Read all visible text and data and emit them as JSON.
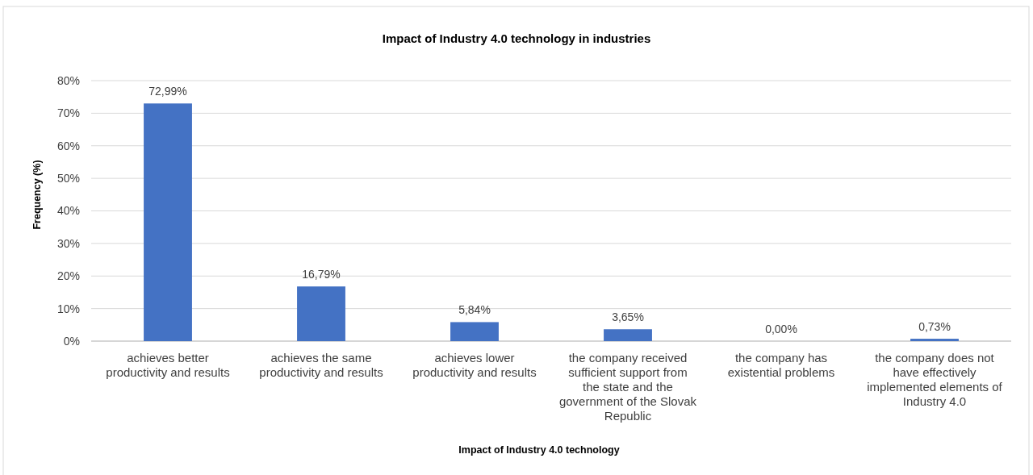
{
  "chart_data": {
    "type": "bar",
    "title": "Impact of Industry 4.0 technology in industries",
    "xlabel": "Impact of Industry 4.0 technology",
    "ylabel": "Frequency (%)",
    "categories": [
      "achieves better productivity and results",
      "achieves the same productivity and results",
      "achieves lower productivity and results",
      "the company received sufficient support from the state and the government of the Slovak Republic",
      "the company has existential problems",
      "the company does not have effectively implemented elements of Industry 4.0"
    ],
    "values": [
      72.99,
      16.79,
      5.84,
      3.65,
      0,
      0.73
    ],
    "value_labels": [
      "72,99%",
      "16,79%",
      "5,84%",
      "3,65%",
      "0,00%",
      "0,73%"
    ],
    "color": "#4472c4",
    "ylim": [
      0,
      80
    ],
    "yticks": [
      {
        "value": 0,
        "label": "0%"
      },
      {
        "value": 10,
        "label": "10%"
      },
      {
        "value": 20,
        "label": "20%"
      },
      {
        "value": 30,
        "label": "30%"
      },
      {
        "value": 40,
        "label": "40%"
      },
      {
        "value": 50,
        "label": "50%"
      },
      {
        "value": 60,
        "label": "60%"
      },
      {
        "value": 70,
        "label": "70%"
      },
      {
        "value": 80,
        "label": "80%"
      }
    ],
    "grid": "y"
  }
}
